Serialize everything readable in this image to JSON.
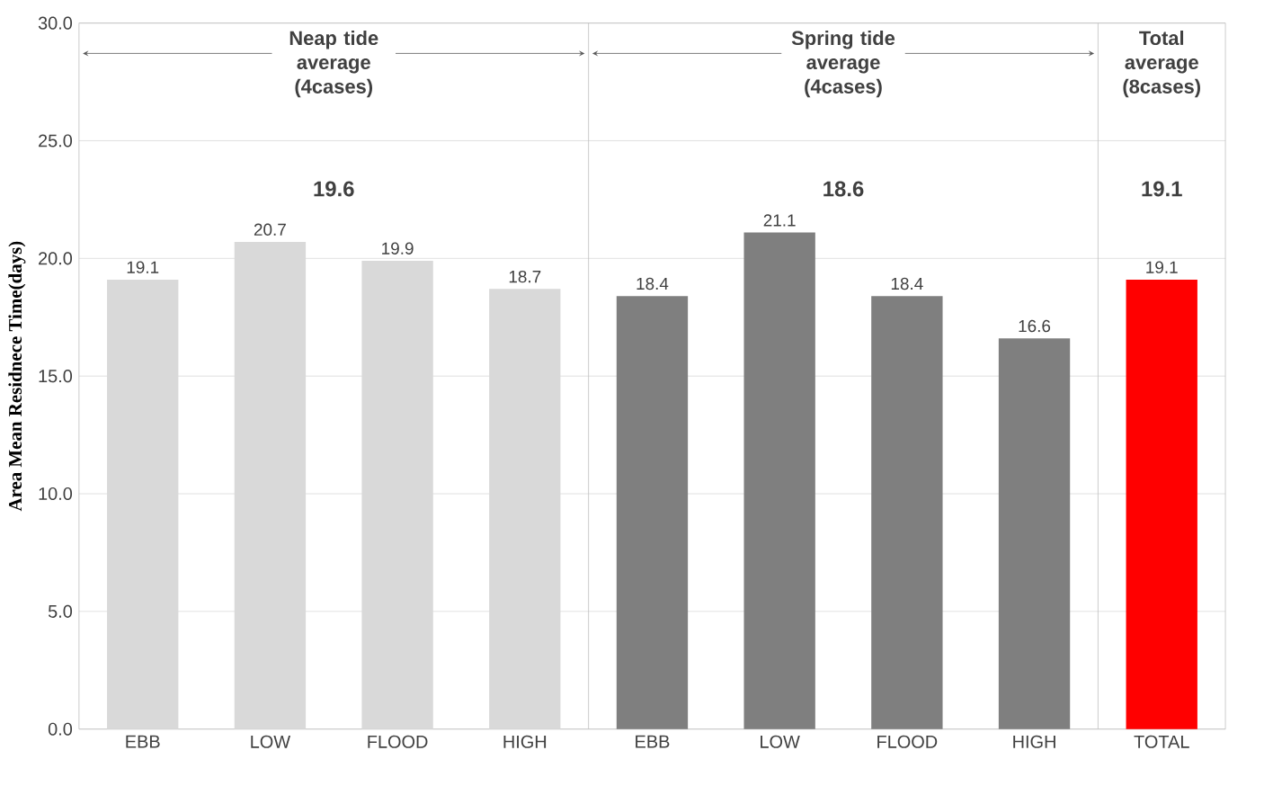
{
  "chart_data": {
    "type": "bar",
    "ylabel": "Area Mean Residnece Time(days)",
    "categories": [
      "EBB",
      "LOW",
      "FLOOD",
      "HIGH",
      "EBB",
      "LOW",
      "FLOOD",
      "HIGH",
      "TOTAL"
    ],
    "values": [
      19.1,
      20.7,
      19.9,
      18.7,
      18.4,
      21.1,
      18.4,
      16.6,
      19.1
    ],
    "colors": [
      "#d9d9d9",
      "#d9d9d9",
      "#d9d9d9",
      "#d9d9d9",
      "#7f7f7f",
      "#7f7f7f",
      "#7f7f7f",
      "#7f7f7f",
      "#ff0000"
    ],
    "data_labels": true,
    "ylim": [
      0,
      30
    ],
    "yticks": [
      {
        "value": 0,
        "label": "0.0"
      },
      {
        "value": 5,
        "label": "5.0"
      },
      {
        "value": 10,
        "label": "10.0"
      },
      {
        "value": 15,
        "label": "15.0"
      },
      {
        "value": 20,
        "label": "20.0"
      },
      {
        "value": 25,
        "label": "25.0"
      },
      {
        "value": 30,
        "label": "30.0"
      }
    ],
    "grid": "y",
    "annotations": [
      "Neap tide average (4cases)",
      "19.6",
      "Spring tide average (4cases)",
      "18.6",
      "Total average (8cases)",
      "19.1"
    ]
  }
}
